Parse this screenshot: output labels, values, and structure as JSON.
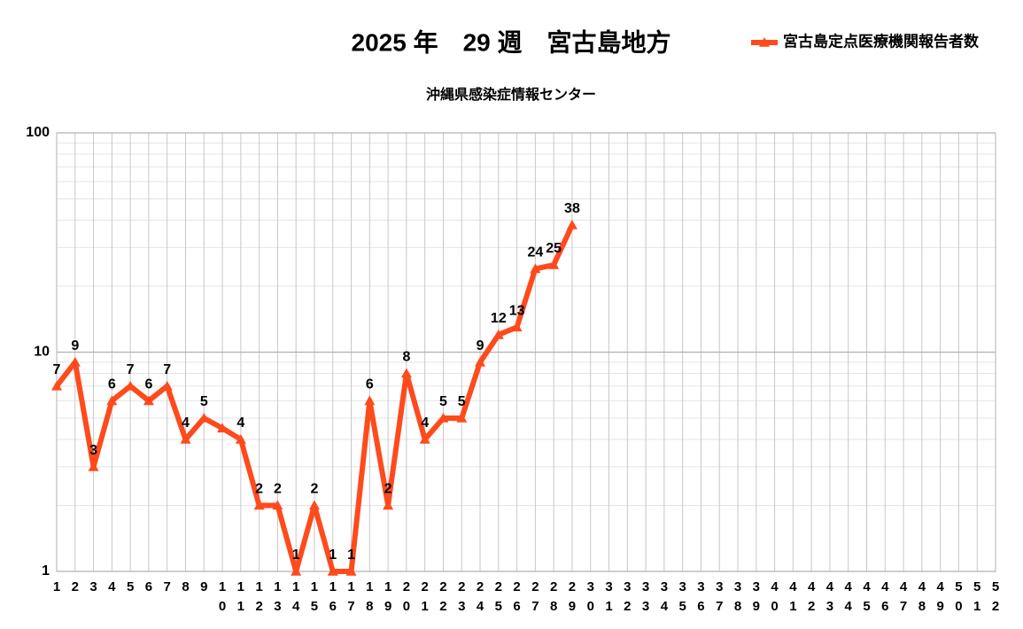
{
  "chart_data": {
    "type": "line",
    "title": "2025 年　29 週　宮古島地方",
    "subtitle": "沖縄県感染症情報センター",
    "categories": [
      "1",
      "2",
      "3",
      "4",
      "5",
      "6",
      "7",
      "8",
      "9",
      "10",
      "11",
      "12",
      "13",
      "14",
      "15",
      "16",
      "17",
      "18",
      "19",
      "20",
      "21",
      "22",
      "23",
      "24",
      "25",
      "26",
      "27",
      "28",
      "29",
      "30",
      "31",
      "32",
      "33",
      "34",
      "35",
      "36",
      "37",
      "38",
      "39",
      "40",
      "41",
      "42",
      "43",
      "44",
      "45",
      "46",
      "47",
      "48",
      "49",
      "50",
      "51",
      "52"
    ],
    "series": [
      {
        "name": "宮古島定点医療機関報告者数",
        "color": "#ff4a1c",
        "values": [
          7,
          9,
          3,
          6,
          7,
          6,
          7,
          4,
          5,
          4.5,
          4,
          2,
          2,
          1,
          2,
          1,
          1,
          6,
          2,
          8,
          4,
          5,
          5,
          9,
          12,
          13,
          24,
          25,
          38,
          null,
          null,
          null,
          null,
          null,
          null,
          null,
          null,
          null,
          null,
          null,
          null,
          null,
          null,
          null,
          null,
          null,
          null,
          null,
          null,
          null,
          null,
          null
        ],
        "value_labels": [
          "7",
          "9",
          "3",
          "6",
          "7",
          "6",
          "7",
          "4",
          "5",
          null,
          "4",
          "2",
          "2",
          "1",
          "2",
          "1",
          "1",
          "6",
          "2",
          "8",
          "4",
          "5",
          "5",
          "9",
          "12",
          "13",
          "24",
          "25",
          "38",
          null,
          null,
          null,
          null,
          null,
          null,
          null,
          null,
          null,
          null,
          null,
          null,
          null,
          null,
          null,
          null,
          null,
          null,
          null,
          null,
          null,
          null,
          null
        ]
      }
    ],
    "ylim": [
      1,
      100
    ],
    "yticks": [
      1,
      10,
      100
    ],
    "log_scale": true,
    "grid": true,
    "minor_grid": true,
    "legend": "top-right"
  }
}
